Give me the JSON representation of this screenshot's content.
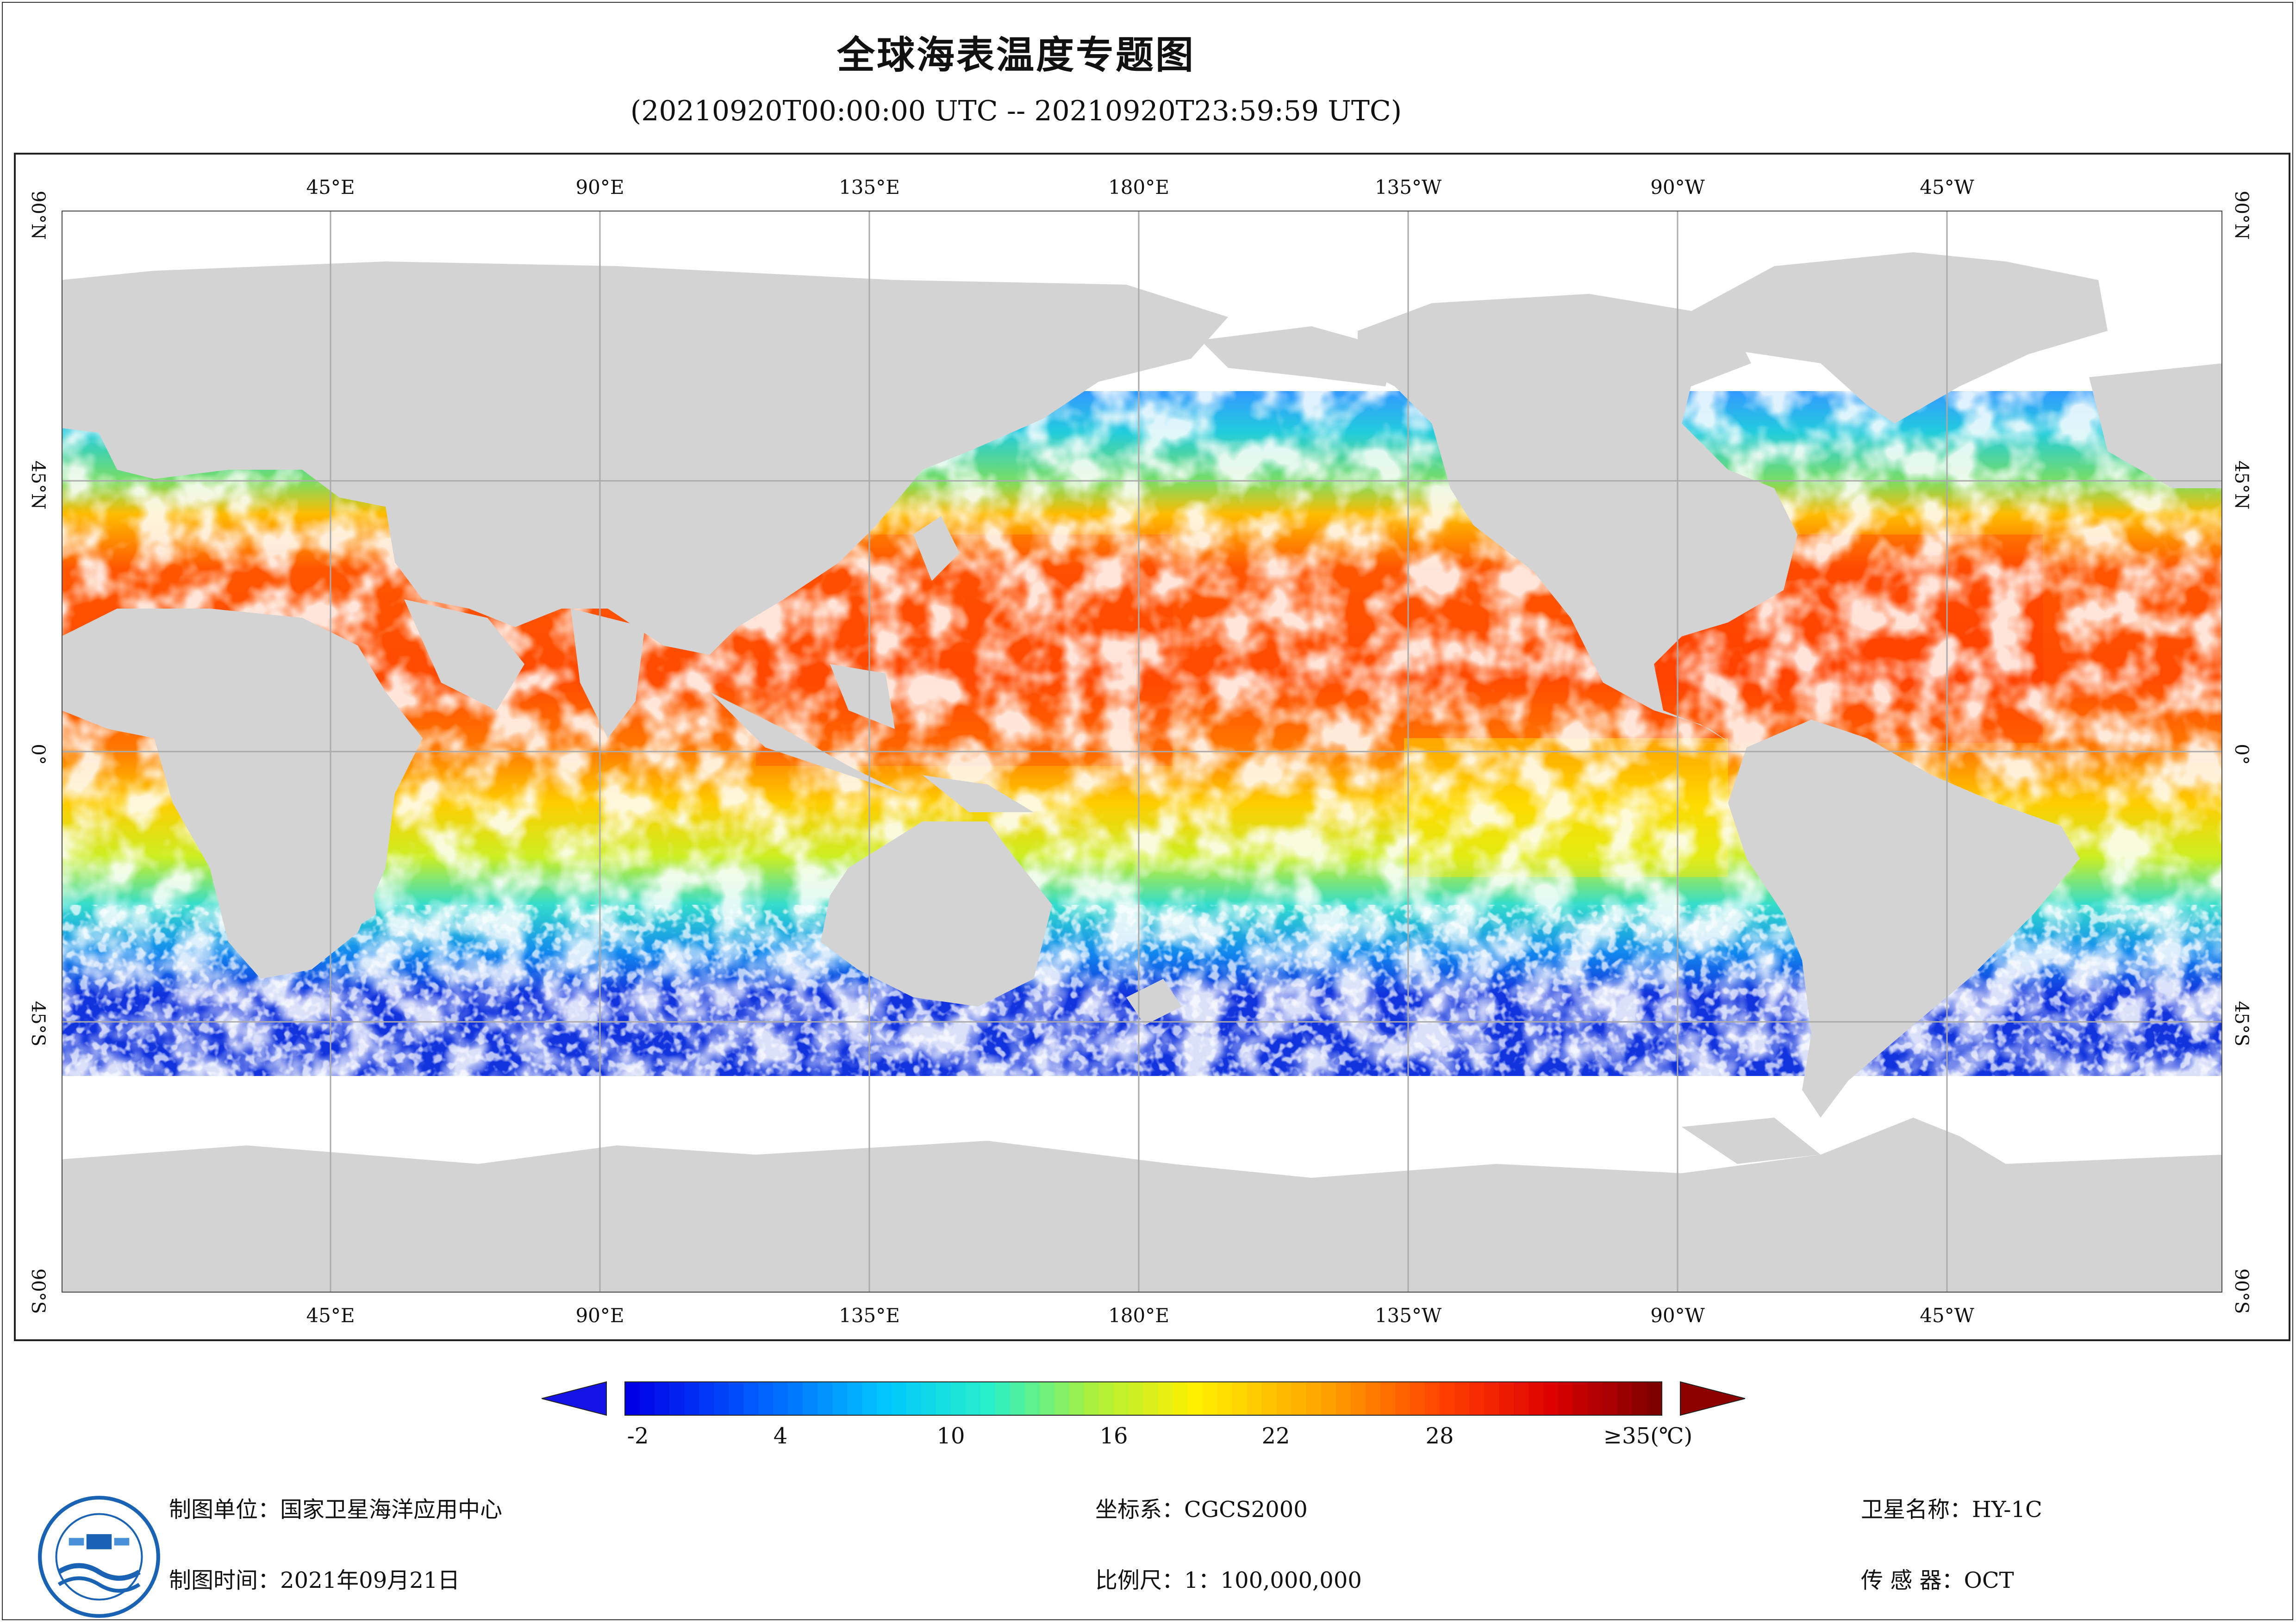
{
  "title": "全球海表温度专题图",
  "subtitle": "(20210920T00:00:00 UTC -- 20210920T23:59:59 UTC)",
  "map": {
    "top_lon_labels": [
      "45°E",
      "90°E",
      "135°E",
      "180°E",
      "135°W",
      "90°W",
      "45°W"
    ],
    "bottom_lon_labels": [
      "45°E",
      "90°E",
      "135°E",
      "180°E",
      "135°W",
      "90°W",
      "45°W"
    ],
    "lat_labels": [
      "90°N",
      "45°N",
      "0°",
      "45°S",
      "90°S"
    ],
    "colors": {
      "land": "#d3d3d3",
      "nodata": "#ffffff",
      "grid": "#aaaaaa"
    }
  },
  "colorbar": {
    "tick_labels": [
      "-2",
      "4",
      "10",
      "16",
      "22",
      "28",
      "≥35(℃)"
    ],
    "min": -2,
    "max": 35,
    "unit": "℃",
    "under_color": "#1414e6",
    "over_color": "#8c0000"
  },
  "footer": {
    "org": "制图单位：国家卫星海洋应用中心",
    "time": "制图时间：2021年09月21日",
    "crs": "坐标系：CGCS2000",
    "scale": "比例尺：1：100,000,000",
    "satellite": "卫星名称：HY-1C",
    "sensor": "传 感 器：OCT"
  }
}
